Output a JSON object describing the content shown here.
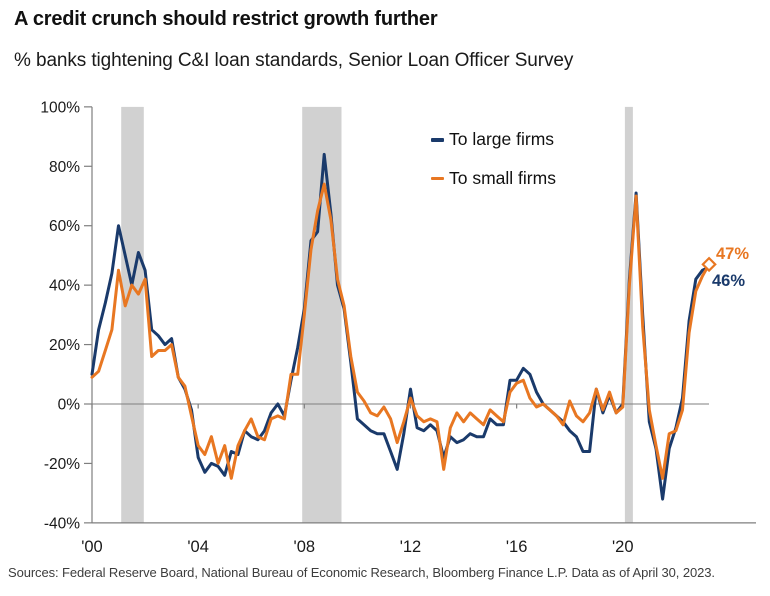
{
  "header": {
    "title": "A credit crunch should restrict growth further",
    "subtitle": "% banks tightening C&I loan standards, Senior Loan Officer Survey"
  },
  "chart_data": {
    "type": "line",
    "title": "A credit crunch should restrict growth further",
    "subtitle": "% banks tightening C&I loan standards, Senior Loan Officer Survey",
    "xlabel": "",
    "ylabel": "",
    "x_start_year": 2000,
    "x_step_years": 0.25,
    "xlim_years": [
      2000,
      2023.6
    ],
    "ylim": [
      -40,
      100
    ],
    "grid": "zero-line-only",
    "legend_position": "top-right-inside-plot",
    "x_ticks": [
      {
        "year": 2000,
        "label": "'00"
      },
      {
        "year": 2004,
        "label": "'04"
      },
      {
        "year": 2008,
        "label": "'08"
      },
      {
        "year": 2012,
        "label": "'12"
      },
      {
        "year": 2016,
        "label": "'16"
      },
      {
        "year": 2020,
        "label": "'20"
      }
    ],
    "y_ticks": [
      {
        "value": 100,
        "label": "100%"
      },
      {
        "value": 80,
        "label": "80%"
      },
      {
        "value": 60,
        "label": "60%"
      },
      {
        "value": 40,
        "label": "40%"
      },
      {
        "value": 20,
        "label": "20%"
      },
      {
        "value": 0,
        "label": "0%"
      },
      {
        "value": -20,
        "label": "-20%"
      },
      {
        "value": -40,
        "label": "-40%"
      }
    ],
    "recession_bands": [
      {
        "from": 2001.1,
        "to": 2001.95
      },
      {
        "from": 2007.92,
        "to": 2009.4
      },
      {
        "from": 2020.08,
        "to": 2020.38
      }
    ],
    "band_color": "#d1d1d1",
    "axis_color": "#7f7f7f",
    "label_color": "#1a1a1a",
    "series": [
      {
        "name": "To large firms",
        "color": "#1a3a6b",
        "end_label": "46%",
        "end_marker": "none",
        "values": [
          10,
          25,
          34,
          44,
          60,
          50,
          40,
          51,
          45,
          25,
          23,
          20,
          22,
          9,
          5,
          -2,
          -18,
          -23,
          -20,
          -21,
          -24,
          -16,
          -17,
          -9,
          -11,
          -12,
          -9,
          -3,
          0,
          -4,
          8,
          19,
          32,
          55,
          58,
          84,
          64,
          40,
          32,
          14,
          -5,
          -7,
          -9,
          -10,
          -10,
          -16,
          -22,
          -10,
          5,
          -8,
          -9,
          -7,
          -9,
          -18,
          -11,
          -13,
          -12,
          -10,
          -11,
          -11,
          -5,
          -7,
          -7,
          8,
          8,
          12,
          10,
          4,
          0,
          -2,
          -4,
          -6,
          -9,
          -11,
          -16,
          -16,
          5,
          -3,
          3,
          -3,
          0,
          42,
          71,
          30,
          -6,
          -15,
          -32,
          -15,
          -8,
          2,
          28,
          42,
          45,
          46
        ]
      },
      {
        "name": "To small firms",
        "color": "#e87722",
        "end_label": "47%",
        "end_marker": "diamond",
        "values": [
          9,
          11,
          18,
          25,
          45,
          33,
          40,
          37,
          42,
          16,
          18,
          18,
          20,
          9,
          6,
          -4,
          -14,
          -17,
          -11,
          -20,
          -14,
          -25,
          -14,
          -9,
          -5,
          -11,
          -12,
          -5,
          -4,
          -5,
          10,
          10,
          30,
          52,
          65,
          74,
          62,
          42,
          33,
          16,
          4,
          1,
          -3,
          -4,
          -1,
          -5,
          -13,
          -6,
          2,
          -4,
          -6,
          -5,
          -6,
          -22,
          -8,
          -3,
          -6,
          -3,
          -5,
          -7,
          -2,
          -4,
          -6,
          4,
          7,
          8,
          2,
          -1,
          0,
          -2,
          -4,
          -7,
          1,
          -4,
          -6,
          -3,
          5,
          -2,
          4,
          -3,
          -1,
          40,
          70,
          26,
          -2,
          -14,
          -25,
          -10,
          -9,
          -2,
          24,
          38,
          43,
          47
        ]
      }
    ]
  },
  "footer": {
    "sources": "Sources: Federal Reserve Board, National Bureau of Economic Research, Bloomberg Finance L.P. Data as of April 30, 2023."
  }
}
